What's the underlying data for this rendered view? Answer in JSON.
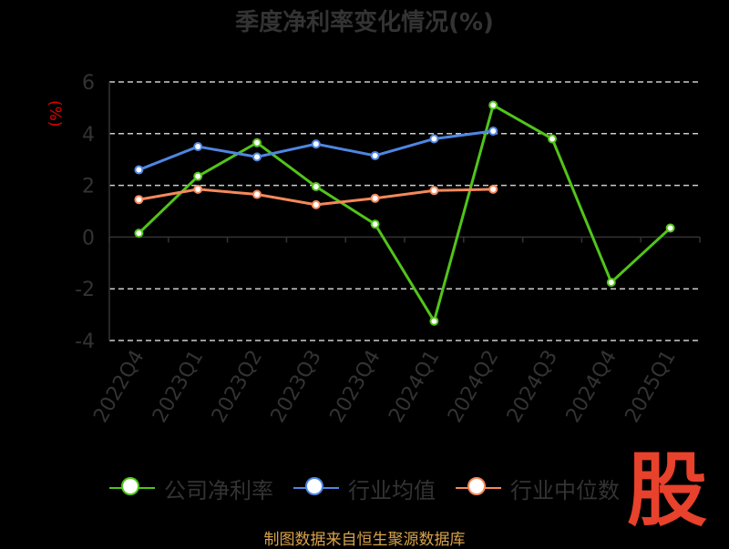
{
  "title": "季度净利率变化情况(%)",
  "footer": "制图数据来自恒生聚源数据库",
  "watermark": "股",
  "chart_data": {
    "type": "line",
    "title": "季度净利率变化情况(%)",
    "ylabel": "(%)",
    "ylim": [
      -4,
      6
    ],
    "yticks": [
      6,
      4,
      2,
      0,
      -2,
      -4
    ],
    "categories": [
      "2022Q4",
      "2023Q1",
      "2023Q2",
      "2023Q3",
      "2023Q4",
      "2024Q1",
      "2024Q2",
      "2024Q3",
      "2024Q4",
      "2025Q1"
    ],
    "grid": true,
    "legend_position": "bottom",
    "series": [
      {
        "name": "公司净利率",
        "color": "#52c41a",
        "values": [
          0.15,
          2.35,
          3.65,
          1.95,
          0.5,
          -3.25,
          5.1,
          3.8,
          -1.75,
          0.35
        ]
      },
      {
        "name": "行业均值",
        "color": "#4f86e2",
        "values": [
          2.6,
          3.5,
          3.1,
          3.6,
          3.15,
          3.8,
          4.1,
          null,
          null,
          null
        ]
      },
      {
        "name": "行业中位数",
        "color": "#f5895b",
        "values": [
          1.45,
          1.85,
          1.65,
          1.25,
          1.5,
          1.8,
          1.85,
          null,
          null,
          null
        ]
      }
    ]
  }
}
